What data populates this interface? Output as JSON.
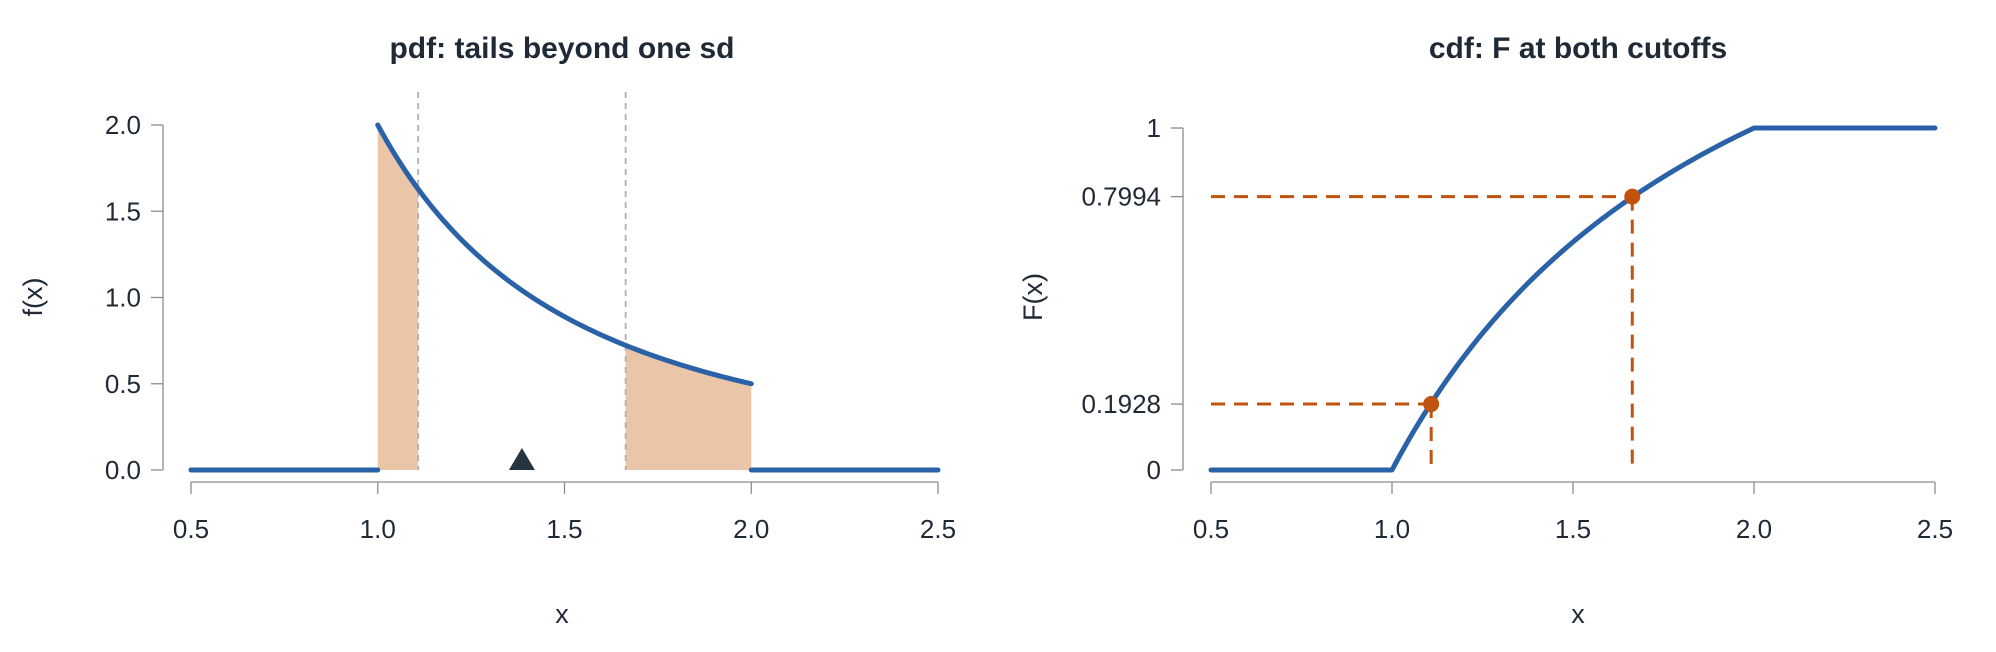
{
  "colors": {
    "curve": "#2a62a8",
    "shade": "#ebc5a8",
    "guide": "#b0b0b0",
    "highlight": "#c0540e",
    "marker": "#263340"
  },
  "chart_data": [
    {
      "type": "line",
      "title": "pdf: tails beyond one sd",
      "xlabel": "x",
      "ylabel": "f(x)",
      "xlim": [
        0.5,
        2.5
      ],
      "ylim": [
        0,
        2
      ],
      "xticks": [
        0.5,
        1.0,
        1.5,
        2.0,
        2.5
      ],
      "xtick_labels": [
        "0.5",
        "1.0",
        "1.5",
        "2.0",
        "2.5"
      ],
      "yticks": [
        0,
        0.5,
        1.0,
        1.5,
        2.0
      ],
      "ytick_labels": [
        "0.0",
        "0.5",
        "1.0",
        "1.5",
        "2.0"
      ],
      "grid": false,
      "series": [
        {
          "x": [
            0.5,
            1.0,
            1.0,
            1.1,
            1.2,
            1.3,
            1.4,
            1.5,
            1.6,
            1.7,
            1.8,
            1.9,
            2.0,
            2.0,
            2.5
          ],
          "y": [
            0,
            0,
            2.0,
            1.653,
            1.389,
            1.183,
            1.02,
            0.889,
            0.781,
            0.692,
            0.617,
            0.554,
            0.5,
            0,
            0
          ]
        }
      ],
      "shaded_regions": [
        {
          "from": 1.0,
          "to": 1.1082
        },
        {
          "from": 1.6637,
          "to": 2.0
        }
      ],
      "vlines": [
        1.1082,
        1.6637
      ],
      "markers": [
        {
          "x": 1.386,
          "y": 0,
          "shape": "triangle"
        }
      ]
    },
    {
      "type": "line",
      "title": "cdf: F at both cutoffs",
      "xlabel": "x",
      "ylabel": "F(x)",
      "xlim": [
        0.5,
        2.5
      ],
      "ylim": [
        0,
        1
      ],
      "xticks": [
        0.5,
        1.0,
        1.5,
        2.0,
        2.5
      ],
      "xtick_labels": [
        "0.5",
        "1.0",
        "1.5",
        "2.0",
        "2.5"
      ],
      "yticks": [
        0,
        0.1928,
        0.7994,
        1
      ],
      "ytick_labels": [
        "0",
        "0.1928",
        "0.7994",
        "1"
      ],
      "highlight_ticks": [
        "0.1928",
        "0.7994"
      ],
      "grid": false,
      "series": [
        {
          "x": [
            0.5,
            1.0,
            1.1,
            1.2,
            1.3,
            1.4,
            1.5,
            1.6,
            1.7,
            1.8,
            1.9,
            2.0,
            2.5
          ],
          "y": [
            0,
            0,
            0.1818,
            0.3333,
            0.4615,
            0.5714,
            0.6667,
            0.75,
            0.8235,
            0.8889,
            0.9474,
            1,
            1
          ]
        }
      ],
      "points": [
        {
          "x": 1.1082,
          "y": 0.1928
        },
        {
          "x": 1.6637,
          "y": 0.7994
        }
      ]
    }
  ]
}
